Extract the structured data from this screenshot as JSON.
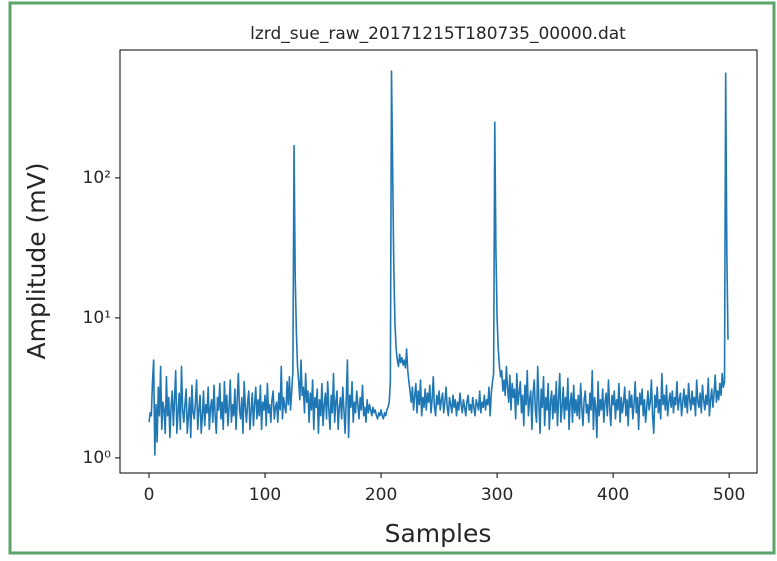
{
  "chart_data": {
    "type": "line",
    "title": "lzrd_sue_raw_20171215T180735_00000.dat",
    "x_label": "Samples",
    "y_label": "Amplitude (mV)",
    "color": "#1f77b4",
    "log_y": true,
    "xlim": [
      -25,
      524
    ],
    "ylim": [
      0.78,
      820
    ],
    "xticks": [
      0,
      100,
      200,
      300,
      400,
      500
    ],
    "yticks": [
      {
        "value": 1,
        "label": "10⁰"
      },
      {
        "value": 10,
        "label": "10¹"
      },
      {
        "value": 100,
        "label": "10²"
      }
    ],
    "x": [
      0,
      1,
      2,
      3,
      4,
      5,
      6,
      7,
      8,
      9,
      10,
      11,
      12,
      13,
      14,
      15,
      16,
      17,
      18,
      19,
      20,
      21,
      22,
      23,
      24,
      25,
      26,
      27,
      28,
      29,
      30,
      31,
      32,
      33,
      34,
      35,
      36,
      37,
      38,
      39,
      40,
      41,
      42,
      43,
      44,
      45,
      46,
      47,
      48,
      49,
      50,
      51,
      52,
      53,
      54,
      55,
      56,
      57,
      58,
      59,
      60,
      61,
      62,
      63,
      64,
      65,
      66,
      67,
      68,
      69,
      70,
      71,
      72,
      73,
      74,
      75,
      76,
      77,
      78,
      79,
      80,
      81,
      82,
      83,
      84,
      85,
      86,
      87,
      88,
      89,
      90,
      91,
      92,
      93,
      94,
      95,
      96,
      97,
      98,
      99,
      100,
      101,
      102,
      103,
      104,
      105,
      106,
      107,
      108,
      109,
      110,
      111,
      112,
      113,
      114,
      115,
      116,
      117,
      118,
      119,
      120,
      121,
      122,
      123,
      124,
      125,
      126,
      127,
      128,
      129,
      130,
      131,
      132,
      133,
      134,
      135,
      136,
      137,
      138,
      139,
      140,
      141,
      142,
      143,
      144,
      145,
      146,
      147,
      148,
      149,
      150,
      151,
      152,
      153,
      154,
      155,
      156,
      157,
      158,
      159,
      160,
      161,
      162,
      163,
      164,
      165,
      166,
      167,
      168,
      169,
      170,
      171,
      172,
      173,
      174,
      175,
      176,
      177,
      178,
      179,
      180,
      181,
      182,
      183,
      184,
      185,
      186,
      187,
      188,
      189,
      190,
      191,
      192,
      193,
      194,
      195,
      196,
      197,
      198,
      199,
      200,
      201,
      202,
      203,
      204,
      205,
      206,
      207,
      208,
      209,
      210,
      211,
      212,
      213,
      214,
      215,
      216,
      217,
      218,
      219,
      220,
      221,
      222,
      223,
      224,
      225,
      226,
      227,
      228,
      229,
      230,
      231,
      232,
      233,
      234,
      235,
      236,
      237,
      238,
      239,
      240,
      241,
      242,
      243,
      244,
      245,
      246,
      247,
      248,
      249,
      250,
      251,
      252,
      253,
      254,
      255,
      256,
      257,
      258,
      259,
      260,
      261,
      262,
      263,
      264,
      265,
      266,
      267,
      268,
      269,
      270,
      271,
      272,
      273,
      274,
      275,
      276,
      277,
      278,
      279,
      280,
      281,
      282,
      283,
      284,
      285,
      286,
      287,
      288,
      289,
      290,
      291,
      292,
      293,
      294,
      295,
      296,
      297,
      298,
      299,
      300,
      301,
      302,
      303,
      304,
      305,
      306,
      307,
      308,
      309,
      310,
      311,
      312,
      313,
      314,
      315,
      316,
      317,
      318,
      319,
      320,
      321,
      322,
      323,
      324,
      325,
      326,
      327,
      328,
      329,
      330,
      331,
      332,
      333,
      334,
      335,
      336,
      337,
      338,
      339,
      340,
      341,
      342,
      343,
      344,
      345,
      346,
      347,
      348,
      349,
      350,
      351,
      352,
      353,
      354,
      355,
      356,
      357,
      358,
      359,
      360,
      361,
      362,
      363,
      364,
      365,
      366,
      367,
      368,
      369,
      370,
      371,
      372,
      373,
      374,
      375,
      376,
      377,
      378,
      379,
      380,
      381,
      382,
      383,
      384,
      385,
      386,
      387,
      388,
      389,
      390,
      391,
      392,
      393,
      394,
      395,
      396,
      397,
      398,
      399,
      400,
      401,
      402,
      403,
      404,
      405,
      406,
      407,
      408,
      409,
      410,
      411,
      412,
      413,
      414,
      415,
      416,
      417,
      418,
      419,
      420,
      421,
      422,
      423,
      424,
      425,
      426,
      427,
      428,
      429,
      430,
      431,
      432,
      433,
      434,
      435,
      436,
      437,
      438,
      439,
      440,
      441,
      442,
      443,
      444,
      445,
      446,
      447,
      448,
      449,
      450,
      451,
      452,
      453,
      454,
      455,
      456,
      457,
      458,
      459,
      460,
      461,
      462,
      463,
      464,
      465,
      466,
      467,
      468,
      469,
      470,
      471,
      472,
      473,
      474,
      475,
      476,
      477,
      478,
      479,
      480,
      481,
      482,
      483,
      484,
      485,
      486,
      487,
      488,
      489,
      490,
      491,
      492,
      493,
      494,
      495,
      496,
      497,
      498,
      499
    ],
    "values": [
      1.8,
      2.1,
      2.0,
      3.5,
      5.0,
      1.05,
      2.4,
      1.3,
      3.2,
      2.0,
      4.5,
      1.6,
      2.5,
      2.2,
      1.5,
      3.8,
      2.0,
      2.7,
      1.4,
      2.3,
      3.0,
      1.7,
      2.6,
      4.2,
      1.5,
      2.1,
      2.9,
      1.6,
      4.5,
      2.2,
      1.8,
      2.4,
      3.1,
      1.5,
      2.0,
      2.7,
      1.4,
      3.3,
      2.1,
      1.9,
      2.5,
      3.6,
      1.6,
      2.2,
      2.8,
      1.5,
      2.0,
      3.0,
      1.7,
      2.4,
      2.1,
      3.2,
      1.6,
      2.3,
      2.6,
      1.8,
      3.3,
      2.0,
      1.5,
      2.7,
      2.2,
      3.4,
      1.9,
      2.5,
      1.6,
      3.5,
      2.1,
      2.8,
      1.7,
      2.3,
      3.6,
      1.8,
      2.4,
      2.0,
      3.1,
      1.6,
      2.6,
      4.0,
      2.2,
      1.9,
      2.7,
      1.5,
      3.5,
      2.3,
      1.8,
      2.5,
      3.0,
      1.6,
      2.2,
      2.9,
      1.7,
      2.4,
      3.2,
      1.9,
      2.6,
      2.0,
      3.3,
      1.6,
      2.5,
      2.2,
      2.8,
      1.7,
      3.4,
      2.1,
      2.4,
      1.8,
      2.6,
      3.0,
      1.9,
      2.3,
      2.5,
      1.8,
      2.9,
      2.2,
      4.5,
      1.9,
      2.7,
      2.3,
      2.1,
      3.5,
      2.4,
      3.8,
      2.2,
      3.0,
      4.2,
      170,
      20,
      8,
      4.5,
      3.5,
      2.6,
      5.0,
      2.8,
      3.2,
      2.1,
      4.0,
      2.5,
      3.0,
      1.8,
      2.9,
      2.2,
      3.6,
      1.6,
      2.7,
      2.3,
      3.1,
      1.5,
      2.6,
      2.0,
      3.4,
      1.7,
      2.4,
      2.9,
      1.9,
      3.5,
      2.2,
      1.6,
      2.8,
      2.1,
      4.0,
      1.8,
      2.5,
      3.0,
      1.6,
      2.3,
      2.7,
      1.9,
      3.2,
      2.2,
      1.5,
      2.6,
      5.0,
      1.4,
      2.8,
      2.3,
      3.5,
      1.8,
      2.5,
      2.1,
      3.0,
      2.4,
      1.9,
      2.7,
      2.2,
      3.3,
      2.0,
      2.3,
      1.8,
      2.6,
      2.1,
      2.4,
      2.2,
      2.0,
      2.3,
      2.1,
      2.2,
      2.0,
      1.9,
      2.1,
      2.0,
      2.2,
      2.0,
      1.9,
      2.1,
      2.0,
      2.2,
      2.3,
      2.5,
      3.5,
      580,
      110,
      22,
      9,
      6,
      5,
      4.5,
      5.5,
      4.8,
      5.2,
      4.6,
      5.0,
      4.4,
      6.0,
      4.2,
      3.5,
      3.0,
      2.5,
      3.2,
      2.2,
      2.8,
      3.4,
      2.1,
      3.0,
      2.4,
      3.6,
      2.0,
      2.7,
      2.3,
      3.1,
      2.2,
      2.9,
      2.5,
      3.3,
      2.1,
      2.6,
      3.8,
      2.3,
      2.0,
      2.8,
      2.4,
      3.0,
      2.2,
      2.6,
      2.9,
      2.1,
      2.5,
      3.2,
      2.3,
      2.0,
      2.7,
      2.4,
      2.1,
      2.8,
      2.3,
      2.6,
      2.0,
      2.5,
      2.2,
      2.9,
      2.4,
      2.1,
      2.6,
      2.3,
      2.0,
      2.5,
      2.8,
      2.2,
      2.4,
      2.1,
      2.7,
      2.3,
      2.0,
      2.6,
      2.4,
      2.2,
      3.0,
      2.1,
      2.5,
      2.3,
      2.8,
      2.2,
      2.6,
      2.4,
      3.2,
      2.0,
      2.9,
      3.5,
      4.0,
      250,
      30,
      10,
      6,
      4.5,
      3.8,
      4.2,
      3.0,
      3.6,
      2.8,
      4.5,
      3.2,
      2.5,
      3.9,
      2.2,
      3.4,
      2.7,
      3.1,
      1.9,
      4.0,
      2.4,
      2.9,
      3.5,
      2.1,
      2.8,
      1.7,
      3.3,
      2.4,
      4.2,
      2.0,
      2.6,
      3.0,
      1.6,
      2.9,
      3.6,
      2.2,
      1.8,
      4.5,
      2.5,
      1.5,
      3.1,
      2.3,
      3.8,
      1.7,
      2.7,
      2.2,
      3.4,
      1.6,
      2.5,
      3.0,
      1.9,
      2.8,
      2.1,
      3.5,
      1.7,
      2.6,
      4.0,
      1.8,
      2.3,
      3.2,
      1.9,
      2.7,
      2.2,
      3.7,
      1.6,
      2.5,
      2.9,
      1.8,
      3.3,
      2.1,
      2.6,
      2.0,
      2.8,
      1.9,
      3.4,
      2.3,
      1.7,
      2.6,
      3.0,
      2.1,
      2.4,
      1.8,
      2.9,
      2.2,
      4.2,
      1.6,
      2.7,
      2.3,
      1.4,
      3.5,
      2.0,
      2.6,
      2.2,
      3.1,
      1.8,
      2.5,
      2.9,
      2.0,
      3.6,
      2.3,
      1.7,
      2.8,
      2.4,
      3.0,
      1.9,
      2.6,
      2.2,
      3.4,
      1.8,
      2.7,
      2.1,
      2.5,
      3.2,
      2.0,
      2.6,
      1.7,
      3.0,
      2.3,
      2.8,
      1.9,
      2.4,
      3.5,
      2.1,
      2.7,
      1.6,
      2.9,
      2.4,
      3.1,
      2.0,
      2.6,
      1.8,
      2.3,
      3.0,
      2.2,
      2.5,
      3.6,
      2.0,
      1.5,
      2.8,
      2.3,
      3.2,
      2.1,
      2.6,
      1.9,
      4.0,
      2.4,
      2.8,
      2.2,
      3.3,
      2.0,
      2.5,
      2.9,
      2.3,
      3.0,
      2.1,
      2.7,
      2.4,
      3.5,
      2.2,
      2.6,
      2.9,
      2.0,
      2.5,
      3.1,
      2.3,
      2.8,
      2.1,
      3.4,
      2.6,
      2.2,
      3.0,
      2.4,
      2.7,
      2.0,
      3.6,
      2.5,
      2.3,
      2.9,
      2.1,
      3.3,
      2.6,
      2.2,
      2.8,
      2.4,
      3.7,
      2.0,
      2.6,
      3.1,
      2.3,
      2.9,
      3.9,
      2.5,
      3.0,
      2.6,
      3.4,
      2.8,
      4.0,
      3.2,
      3.5,
      560,
      30,
      7
    ]
  }
}
